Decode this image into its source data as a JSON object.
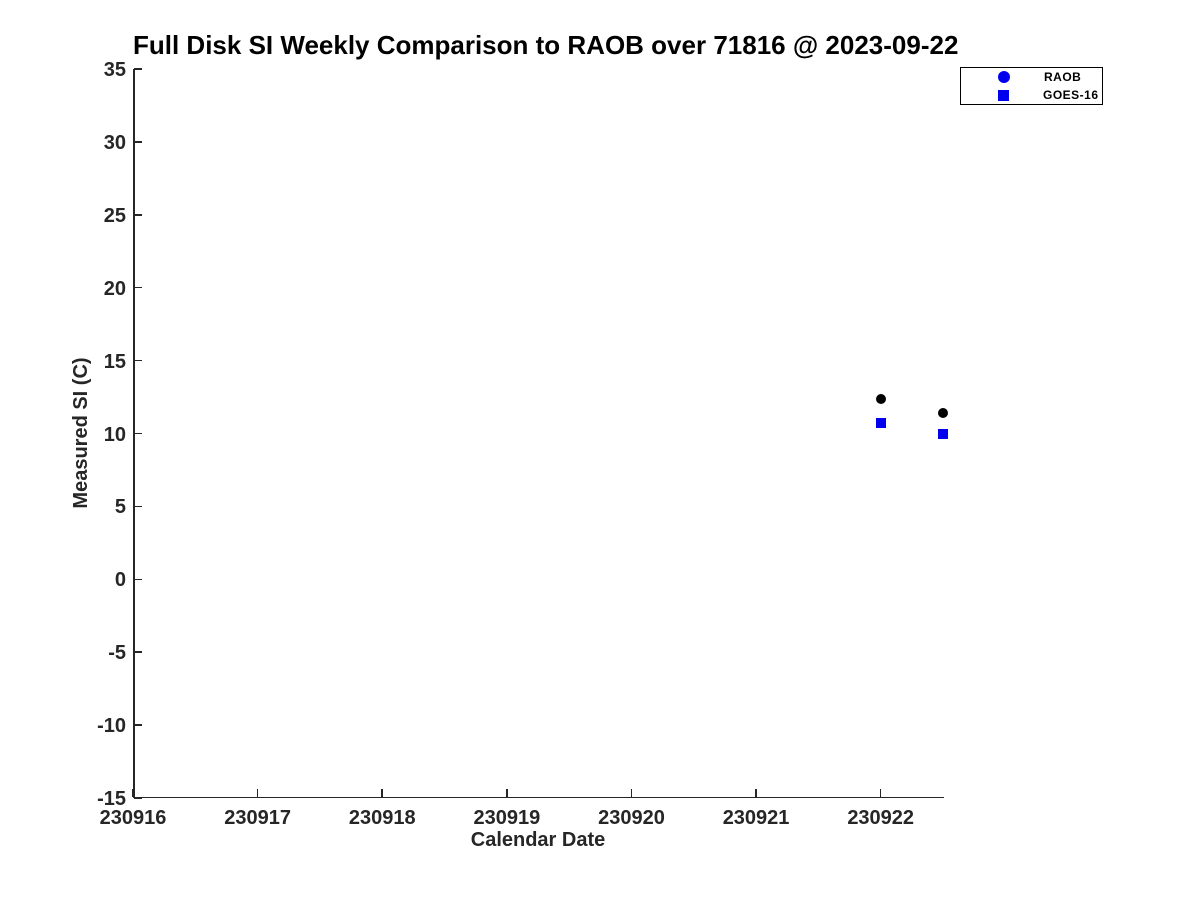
{
  "chart_data": {
    "type": "scatter",
    "title": "Full Disk SI Weekly Comparison to RAOB over 71816 @ 2023-09-22",
    "xlabel": "Calendar Date",
    "ylabel": "Measured SI (C)",
    "xlim": [
      230916,
      230922.5
    ],
    "ylim": [
      -15,
      35
    ],
    "x_ticks": [
      230916,
      230917,
      230918,
      230919,
      230920,
      230921,
      230922
    ],
    "y_ticks": [
      -15,
      -10,
      -5,
      0,
      5,
      10,
      15,
      20,
      25,
      30,
      35
    ],
    "grid": false,
    "axis_color": "#262626",
    "legend": {
      "position": "top-right",
      "entries": [
        {
          "label": "RAOB",
          "marker": "circle",
          "color": "#0000ee"
        },
        {
          "label": "GOES-16",
          "marker": "square",
          "color": "#0000ee"
        }
      ]
    },
    "series": [
      {
        "name": "RAOB",
        "marker": "circle",
        "marker_color": "#000000",
        "points": [
          {
            "x": 230922.0,
            "y": 12.4
          },
          {
            "x": 230922.5,
            "y": 11.4
          }
        ]
      },
      {
        "name": "GOES-16",
        "marker": "square",
        "marker_color": "#0000ee",
        "points": [
          {
            "x": 230922.0,
            "y": 10.7
          },
          {
            "x": 230922.5,
            "y": 10.0
          }
        ]
      }
    ]
  }
}
